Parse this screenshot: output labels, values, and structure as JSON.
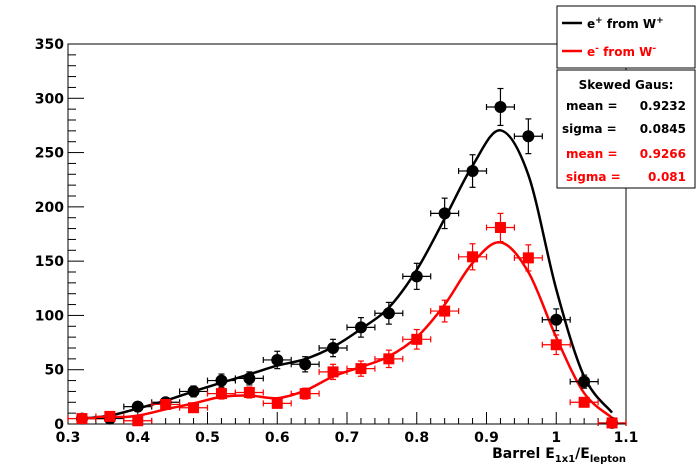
{
  "chart_data": {
    "type": "scatter",
    "title": "",
    "xlabel": {
      "main": "Barrel E",
      "sub1": "1x1",
      "slash": "/E",
      "sub2": "lepton"
    },
    "ylabel": "",
    "xlim": [
      0.3,
      1.1
    ],
    "ylim": [
      0,
      350
    ],
    "x_ticks": [
      "0.3",
      "0.4",
      "0.5",
      "0.6",
      "0.7",
      "0.8",
      "0.9",
      "1",
      "1.1"
    ],
    "y_ticks": [
      "0",
      "50",
      "100",
      "150",
      "200",
      "250",
      "300",
      "350"
    ],
    "x_error": 0.02,
    "grid": false,
    "legend_position": "top-right",
    "colors": {
      "positron": "#000000",
      "electron": "#ff0000"
    },
    "series": [
      {
        "name": "e+ from W+",
        "legend": {
          "e": "e",
          "charge": "+",
          "from": " from W",
          "w_charge": "+"
        },
        "color": "#000000",
        "marker": "circle",
        "x": [
          0.32,
          0.36,
          0.4,
          0.44,
          0.48,
          0.52,
          0.56,
          0.6,
          0.64,
          0.68,
          0.72,
          0.76,
          0.8,
          0.84,
          0.88,
          0.92,
          0.96,
          1.0,
          1.04,
          1.08
        ],
        "y": [
          5,
          5,
          16,
          20,
          30,
          40,
          42,
          59,
          55,
          70,
          89,
          102,
          136,
          194,
          233,
          292,
          265,
          96,
          39,
          1
        ],
        "err": [
          2,
          2,
          4,
          4,
          5,
          6,
          6,
          8,
          7,
          8,
          9,
          10,
          12,
          14,
          15,
          17,
          16,
          10,
          6,
          1
        ],
        "fit": {
          "mean_label": "mean =",
          "mean": "0.9232",
          "sigma_label": "sigma =",
          "sigma": "0.0845"
        }
      },
      {
        "name": "e- from W-",
        "legend": {
          "e": "e",
          "charge": "-",
          "from": " from W",
          "w_charge": "-"
        },
        "color": "#ff0000",
        "marker": "square",
        "x": [
          0.32,
          0.36,
          0.4,
          0.44,
          0.48,
          0.52,
          0.56,
          0.6,
          0.64,
          0.68,
          0.72,
          0.76,
          0.8,
          0.84,
          0.88,
          0.92,
          0.96,
          1.0,
          1.04,
          1.08
        ],
        "y": [
          5,
          7,
          3,
          18,
          15,
          28,
          29,
          19,
          28,
          48,
          51,
          60,
          78,
          104,
          154,
          181,
          153,
          73,
          20,
          1
        ],
        "err": [
          2,
          3,
          2,
          4,
          4,
          5,
          5,
          4,
          5,
          7,
          7,
          8,
          9,
          10,
          12,
          13,
          12,
          9,
          4,
          1
        ],
        "fit": {
          "mean_label": "mean =",
          "mean": "0.9266",
          "sigma_label": "sigma =",
          "sigma": "0.081"
        }
      }
    ],
    "stats_title": "Skewed Gaus:"
  }
}
